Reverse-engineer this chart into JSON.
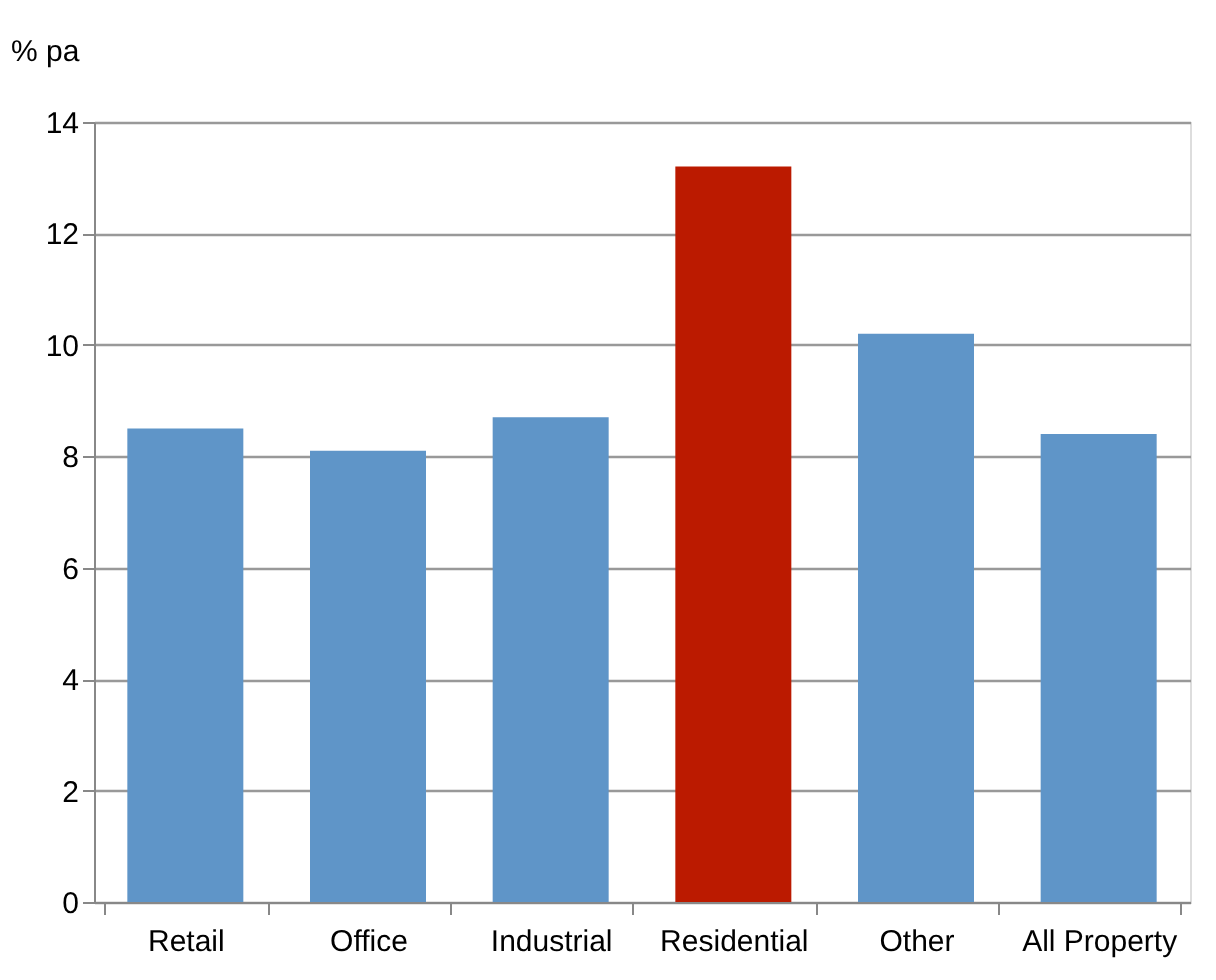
{
  "chart_data": {
    "type": "bar",
    "ylabel": "% pa",
    "categories": [
      "Retail",
      "Office",
      "Industrial",
      "Residential",
      "Other",
      "All Property"
    ],
    "values": [
      8.5,
      8.1,
      8.7,
      13.2,
      10.2,
      8.4
    ],
    "colors": [
      "#5f95c8",
      "#5f95c8",
      "#5f95c8",
      "#bb1a00",
      "#5f95c8",
      "#5f95c8"
    ],
    "ylim": [
      0,
      14
    ],
    "yticks": [
      0,
      2,
      4,
      6,
      8,
      10,
      12,
      14
    ],
    "grid": "y"
  }
}
